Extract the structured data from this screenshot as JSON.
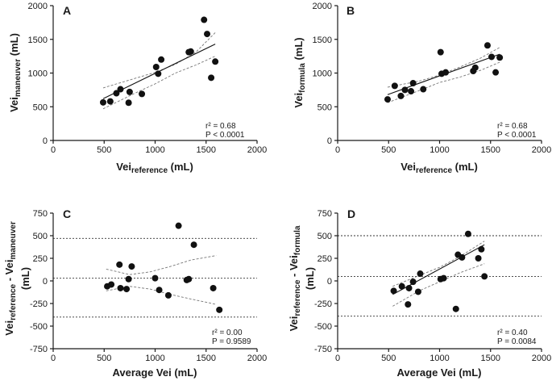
{
  "chart_data": [
    {
      "panel": "A",
      "type": "scatter",
      "xlabel": {
        "main": "Vei",
        "sub": "reference",
        "units": " (mL)"
      },
      "ylabel": {
        "main": "Vei",
        "sub": "maneuver",
        "units": " (mL)"
      },
      "xlim": [
        0,
        2000
      ],
      "ylim": [
        0,
        2000
      ],
      "xticks": [
        0,
        500,
        1000,
        1500,
        2000
      ],
      "yticks": [
        0,
        500,
        1000,
        1500,
        2000
      ],
      "points": [
        [
          490,
          565
        ],
        [
          560,
          580
        ],
        [
          620,
          700
        ],
        [
          660,
          760
        ],
        [
          740,
          560
        ],
        [
          750,
          720
        ],
        [
          870,
          690
        ],
        [
          1010,
          1090
        ],
        [
          1030,
          990
        ],
        [
          1060,
          1200
        ],
        [
          1330,
          1310
        ],
        [
          1350,
          1320
        ],
        [
          1480,
          1790
        ],
        [
          1510,
          1580
        ],
        [
          1550,
          930
        ],
        [
          1590,
          1170
        ]
      ],
      "fit": {
        "x": [
          490,
          1590
        ],
        "y": [
          620,
          1430
        ]
      },
      "ci_upper": {
        "x": [
          490,
          800,
          1000,
          1200,
          1400,
          1590
        ],
        "y": [
          780,
          920,
          1010,
          1130,
          1310,
          1600
        ]
      },
      "ci_lower": {
        "x": [
          490,
          800,
          1000,
          1200,
          1400,
          1590
        ],
        "y": [
          470,
          700,
          840,
          1000,
          1120,
          1250
        ]
      },
      "stat_r2": "r² = 0.68",
      "stat_p": "P  < 0.0001"
    },
    {
      "panel": "B",
      "type": "scatter",
      "xlabel": {
        "main": "Vei",
        "sub": "reference",
        "units": " (mL)"
      },
      "ylabel": {
        "main": "Vei",
        "sub": "formula",
        "units": " (mL)"
      },
      "xlim": [
        0,
        2000
      ],
      "ylim": [
        0,
        2000
      ],
      "xticks": [
        0,
        500,
        1000,
        1500,
        2000
      ],
      "yticks": [
        0,
        500,
        1000,
        1500,
        2000
      ],
      "points": [
        [
          490,
          610
        ],
        [
          560,
          810
        ],
        [
          620,
          660
        ],
        [
          660,
          750
        ],
        [
          720,
          730
        ],
        [
          740,
          850
        ],
        [
          840,
          760
        ],
        [
          1010,
          1310
        ],
        [
          1020,
          990
        ],
        [
          1060,
          1010
        ],
        [
          1330,
          1030
        ],
        [
          1350,
          1080
        ],
        [
          1470,
          1410
        ],
        [
          1510,
          1240
        ],
        [
          1550,
          1010
        ],
        [
          1590,
          1230
        ]
      ],
      "fit": {
        "x": [
          490,
          1590
        ],
        "y": [
          680,
          1280
        ]
      },
      "ci_upper": {
        "x": [
          490,
          800,
          1000,
          1200,
          1400,
          1590
        ],
        "y": [
          790,
          880,
          970,
          1090,
          1220,
          1380
        ]
      },
      "ci_lower": {
        "x": [
          490,
          800,
          1000,
          1200,
          1400,
          1590
        ],
        "y": [
          560,
          740,
          860,
          940,
          1040,
          1160
        ]
      },
      "stat_r2": "r² = 0.68",
      "stat_p": "P  < 0.0001"
    },
    {
      "panel": "C",
      "type": "scatter",
      "xlabel": {
        "main": "Average Vei",
        "sub": "",
        "units": " (mL)"
      },
      "ylabel": {
        "main": "Vei",
        "sub": "reference",
        "mid": " - Vei",
        "sub2": "maneuver",
        "line2": "(mL)"
      },
      "xlim": [
        0,
        2000
      ],
      "ylim": [
        -750,
        750
      ],
      "xticks": [
        0,
        500,
        1000,
        1500,
        2000
      ],
      "yticks": [
        -750,
        -500,
        -250,
        0,
        250,
        500,
        750
      ],
      "points": [
        [
          530,
          -60
        ],
        [
          570,
          -40
        ],
        [
          650,
          180
        ],
        [
          660,
          -80
        ],
        [
          720,
          -90
        ],
        [
          740,
          20
        ],
        [
          770,
          160
        ],
        [
          1000,
          30
        ],
        [
          1040,
          -100
        ],
        [
          1130,
          -160
        ],
        [
          1230,
          610
        ],
        [
          1310,
          10
        ],
        [
          1380,
          400
        ],
        [
          1570,
          -80
        ],
        [
          1630,
          -320
        ],
        [
          1330,
          20
        ]
      ],
      "fit": {
        "x": [
          520,
          1630
        ],
        "y": [
          30,
          30
        ]
      },
      "ci_upper": {
        "x": [
          520,
          750,
          950,
          1150,
          1350,
          1600
        ],
        "y": [
          130,
          70,
          100,
          160,
          230,
          280
        ]
      },
      "ci_lower": {
        "x": [
          520,
          750,
          950,
          1150,
          1350,
          1600
        ],
        "y": [
          -110,
          -60,
          -90,
          -150,
          -200,
          -260
        ]
      },
      "hlines": [
        470,
        30,
        -400
      ],
      "stat_r2": "r² = 0.00",
      "stat_p": "P  = 0.9589"
    },
    {
      "panel": "D",
      "type": "scatter",
      "xlabel": {
        "main": "Average Vei",
        "sub": "",
        "units": " (mL)"
      },
      "ylabel": {
        "main": "Vei",
        "sub": "reference",
        "mid": " - Vei",
        "sub2": "formula",
        "line2": "(mL)"
      },
      "xlim": [
        0,
        2000
      ],
      "ylim": [
        -750,
        750
      ],
      "xticks": [
        0,
        500,
        1000,
        1500,
        2000
      ],
      "yticks": [
        -750,
        -500,
        -250,
        0,
        250,
        500,
        750
      ],
      "points": [
        [
          550,
          -110
        ],
        [
          630,
          -60
        ],
        [
          690,
          -260
        ],
        [
          700,
          -80
        ],
        [
          740,
          -10
        ],
        [
          790,
          -120
        ],
        [
          810,
          80
        ],
        [
          1010,
          20
        ],
        [
          1040,
          30
        ],
        [
          1160,
          -310
        ],
        [
          1180,
          290
        ],
        [
          1220,
          260
        ],
        [
          1280,
          520
        ],
        [
          1380,
          250
        ],
        [
          1410,
          350
        ],
        [
          1440,
          50
        ]
      ],
      "fit": {
        "x": [
          540,
          1440
        ],
        "y": [
          -150,
          400
        ]
      },
      "ci_upper": {
        "x": [
          540,
          800,
          1000,
          1200,
          1440
        ],
        "y": [
          -60,
          60,
          150,
          270,
          440
        ]
      },
      "ci_lower": {
        "x": [
          540,
          800,
          1000,
          1200,
          1440
        ],
        "y": [
          -280,
          -110,
          -10,
          90,
          190
        ]
      },
      "hlines": [
        500,
        50,
        -390
      ],
      "stat_r2": "r² = 0.40",
      "stat_p": "P  = 0.0084"
    }
  ]
}
